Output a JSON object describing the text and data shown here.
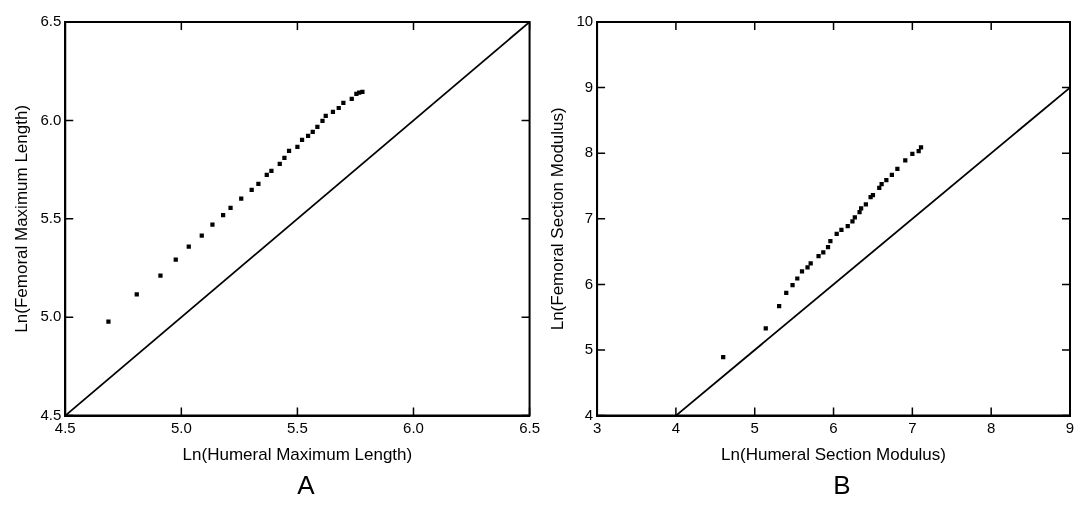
{
  "chart_data": [
    {
      "type": "scatter",
      "xlabel": "Ln(Humeral Maximum Length)",
      "ylabel": "Ln(Femoral Maximum Length)",
      "annotations": [
        "A"
      ],
      "grid": false,
      "legend": false,
      "xlim": [
        4.5,
        6.5
      ],
      "ylim": [
        4.5,
        6.5
      ],
      "xticks": [
        4.5,
        {
          "value": 5,
          "label": "5.0"
        },
        5.5,
        {
          "value": 6,
          "label": "6.0"
        },
        6.5
      ],
      "yticks": [
        4.5,
        {
          "value": 5,
          "label": "5.0"
        },
        5.5,
        {
          "value": 6,
          "label": "6.0"
        },
        6.5
      ],
      "series": [
        {
          "color": "#000000",
          "marker": "square",
          "x": [
            4.686,
            4.808,
            4.91,
            4.976,
            5.032,
            5.088,
            5.134,
            5.18,
            5.212,
            5.258,
            5.303,
            5.332,
            5.368,
            5.388,
            5.424,
            5.444,
            5.464,
            5.5,
            5.52,
            5.546,
            5.566,
            5.586,
            5.608,
            5.622,
            5.653,
            5.678,
            5.698,
            5.734,
            5.754,
            5.766,
            5.78
          ],
          "values": [
            4.977,
            5.116,
            5.211,
            5.292,
            5.358,
            5.414,
            5.47,
            5.519,
            5.556,
            5.602,
            5.647,
            5.678,
            5.723,
            5.744,
            5.779,
            5.81,
            5.845,
            5.866,
            5.901,
            5.921,
            5.942,
            5.967,
            5.997,
            6.023,
            6.043,
            6.063,
            6.089,
            6.109,
            6.135,
            6.141,
            6.145
          ]
        },
        {
          "type": "line",
          "color": "#000000",
          "marker": "none",
          "x": [
            4.5,
            6.5
          ],
          "values": [
            4.5,
            6.5
          ]
        }
      ]
    },
    {
      "type": "scatter",
      "xlabel": "Ln(Humeral Section Modulus)",
      "ylabel": "Ln(Femoral Section Modulus)",
      "annotations": [
        "B"
      ],
      "grid": false,
      "legend": false,
      "xlim": [
        3,
        9
      ],
      "ylim": [
        4,
        10
      ],
      "xticks": [
        3,
        4,
        5,
        6,
        7,
        8,
        9
      ],
      "yticks": [
        4,
        5,
        6,
        7,
        8,
        9,
        10
      ],
      "series": [
        {
          "color": "#000000",
          "marker": "square",
          "x": [
            4.6,
            5.14,
            5.31,
            5.4,
            5.48,
            5.54,
            5.6,
            5.67,
            5.71,
            5.81,
            5.87,
            5.93,
            5.96,
            6.04,
            6.1,
            6.18,
            6.24,
            6.27,
            6.33,
            6.35,
            6.41,
            6.47,
            6.5,
            6.58,
            6.61,
            6.67,
            6.74,
            6.81,
            6.91,
            7.0,
            7.08,
            7.11
          ],
          "values": [
            4.89,
            5.33,
            5.67,
            5.87,
            5.99,
            6.09,
            6.2,
            6.26,
            6.32,
            6.43,
            6.49,
            6.57,
            6.66,
            6.77,
            6.83,
            6.89,
            6.96,
            7.02,
            7.1,
            7.16,
            7.22,
            7.33,
            7.36,
            7.47,
            7.53,
            7.59,
            7.67,
            7.76,
            7.89,
            7.99,
            8.03,
            8.09
          ]
        },
        {
          "type": "line",
          "color": "#000000",
          "marker": "none",
          "x": [
            4,
            9
          ],
          "values": [
            4,
            9
          ]
        }
      ]
    }
  ]
}
